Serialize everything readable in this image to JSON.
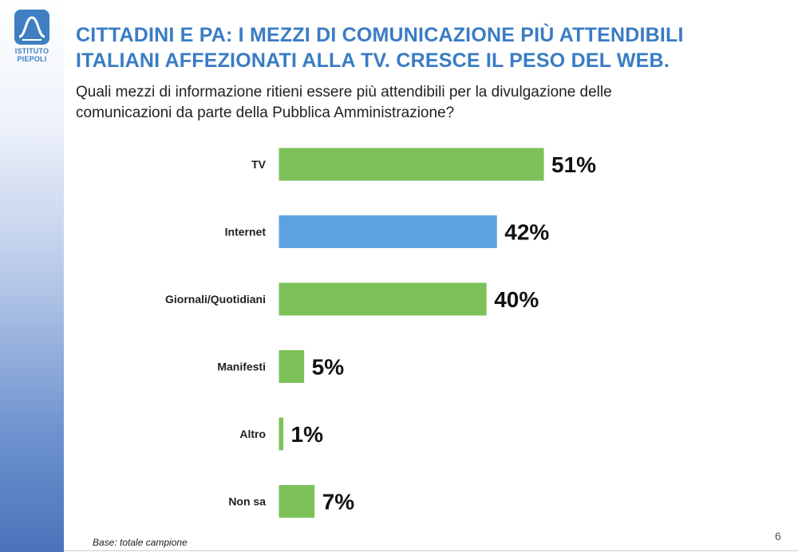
{
  "logo": {
    "line1": "ISTITUTO",
    "line2": "PIEPOLI"
  },
  "title": {
    "line1": "CITTADINI E PA: I MEZZI DI COMUNICAZIONE PIÙ ATTENDIBILI",
    "line2": "ITALIANI AFFEZIONATI ALLA TV. CRESCE IL PESO DEL WEB."
  },
  "question": {
    "line1": "Quali mezzi di informazione ritieni essere più attendibili per la divulgazione delle",
    "line2": "comunicazioni da parte della Pubblica Amministrazione?"
  },
  "chart_data": {
    "type": "bar",
    "orientation": "horizontal",
    "categories": [
      "TV",
      "Internet",
      "Giornali/Quotidiani",
      "Manifesti",
      "Altro",
      "Non sa"
    ],
    "values": [
      51,
      42,
      40,
      5,
      1,
      7
    ],
    "value_suffix": "%",
    "colors": [
      "#7cc15a",
      "#5ea3e0",
      "#7cc15a",
      "#7cc15a",
      "#7cc15a",
      "#7cc15a"
    ],
    "xlim": [
      0,
      100
    ],
    "grid": false,
    "legend": "none"
  },
  "footnote": "Base: totale campione",
  "page_number": "6",
  "colors": {
    "title": "#3a7cc4",
    "green": "#7cc15a",
    "blue": "#5ea3e0"
  }
}
